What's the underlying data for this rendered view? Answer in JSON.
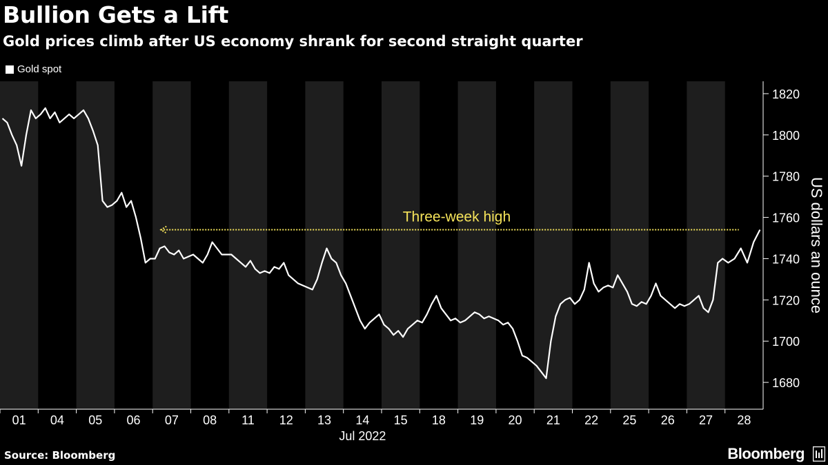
{
  "title": "Bullion Gets a Lift",
  "subtitle": "Gold prices climb after US economy shrank for second straight quarter",
  "legend_label": "Gold spot",
  "source": "Source: Bloomberg",
  "brand": "Bloomberg",
  "brand_icon": "bloomberg-terminal-icon",
  "colors": {
    "background": "#000000",
    "band": "#1e1e1e",
    "line": "#ffffff",
    "annotation": "#f5e35a",
    "axis": "#ffffff"
  },
  "chart_data": {
    "type": "line",
    "title": "Bullion Gets a Lift",
    "subtitle": "Gold prices climb after US economy shrank for second straight quarter",
    "ylabel": "US dollars an ounce",
    "xlabel": "Jul 2022",
    "ylim": [
      1667,
      1826
    ],
    "yticks": [
      1680,
      1700,
      1720,
      1740,
      1760,
      1780,
      1800,
      1820
    ],
    "x_tick_labels": [
      "01",
      "04",
      "05",
      "06",
      "07",
      "08",
      "11",
      "12",
      "13",
      "14",
      "15",
      "18",
      "19",
      "20",
      "21",
      "22",
      "25",
      "26",
      "27",
      "28"
    ],
    "x_period_label": "Jul 2022",
    "legend_position": "top-left",
    "grid": false,
    "series": [
      {
        "name": "Gold spot",
        "day_values": [
          [
            1808,
            1806,
            1800,
            1795,
            1785,
            1800,
            1812,
            1808
          ],
          [
            1810,
            1813,
            1808,
            1811,
            1806,
            1808,
            1810,
            1808
          ],
          [
            1810,
            1812,
            1808,
            1802,
            1795,
            1768,
            1765,
            1766
          ],
          [
            1768,
            1772,
            1765,
            1768,
            1760,
            1750,
            1738,
            1740
          ],
          [
            1740,
            1745,
            1746,
            1743,
            1742,
            1744,
            1740,
            1741
          ],
          [
            1742,
            1740,
            1738,
            1742,
            1748,
            1745,
            1742,
            1742
          ],
          [
            1742,
            1740,
            1738,
            1736,
            1739,
            1735,
            1733,
            1734
          ],
          [
            1733,
            1736,
            1735,
            1738,
            1732,
            1730,
            1728,
            1727
          ],
          [
            1726,
            1725,
            1730,
            1738,
            1745,
            1740,
            1738,
            1732
          ],
          [
            1728,
            1722,
            1716,
            1710,
            1706,
            1709,
            1711,
            1713
          ],
          [
            1708,
            1706,
            1703,
            1705,
            1702,
            1706,
            1708,
            1710
          ],
          [
            1709,
            1713,
            1718,
            1722,
            1716,
            1713,
            1710,
            1711
          ],
          [
            1709,
            1710,
            1712,
            1714,
            1713,
            1711,
            1712,
            1711
          ],
          [
            1710,
            1708,
            1709,
            1706,
            1700,
            1693,
            1692,
            1690
          ],
          [
            1688,
            1685,
            1682,
            1700,
            1712,
            1718,
            1720,
            1721
          ],
          [
            1718,
            1720,
            1725,
            1738,
            1728,
            1724,
            1726,
            1727
          ],
          [
            1726,
            1732,
            1728,
            1724,
            1718,
            1717,
            1719,
            1718
          ],
          [
            1722,
            1728,
            1722,
            1720,
            1718,
            1716,
            1718,
            1717
          ],
          [
            1718,
            1720,
            1722,
            1716,
            1714,
            1720,
            1738,
            1740
          ],
          [
            1738,
            1740,
            1745,
            1738,
            1748,
            1754
          ]
        ]
      }
    ],
    "annotation": {
      "text": "Three-week high",
      "value": 1754,
      "from_day_index": 4,
      "to_day_index": 19
    }
  }
}
